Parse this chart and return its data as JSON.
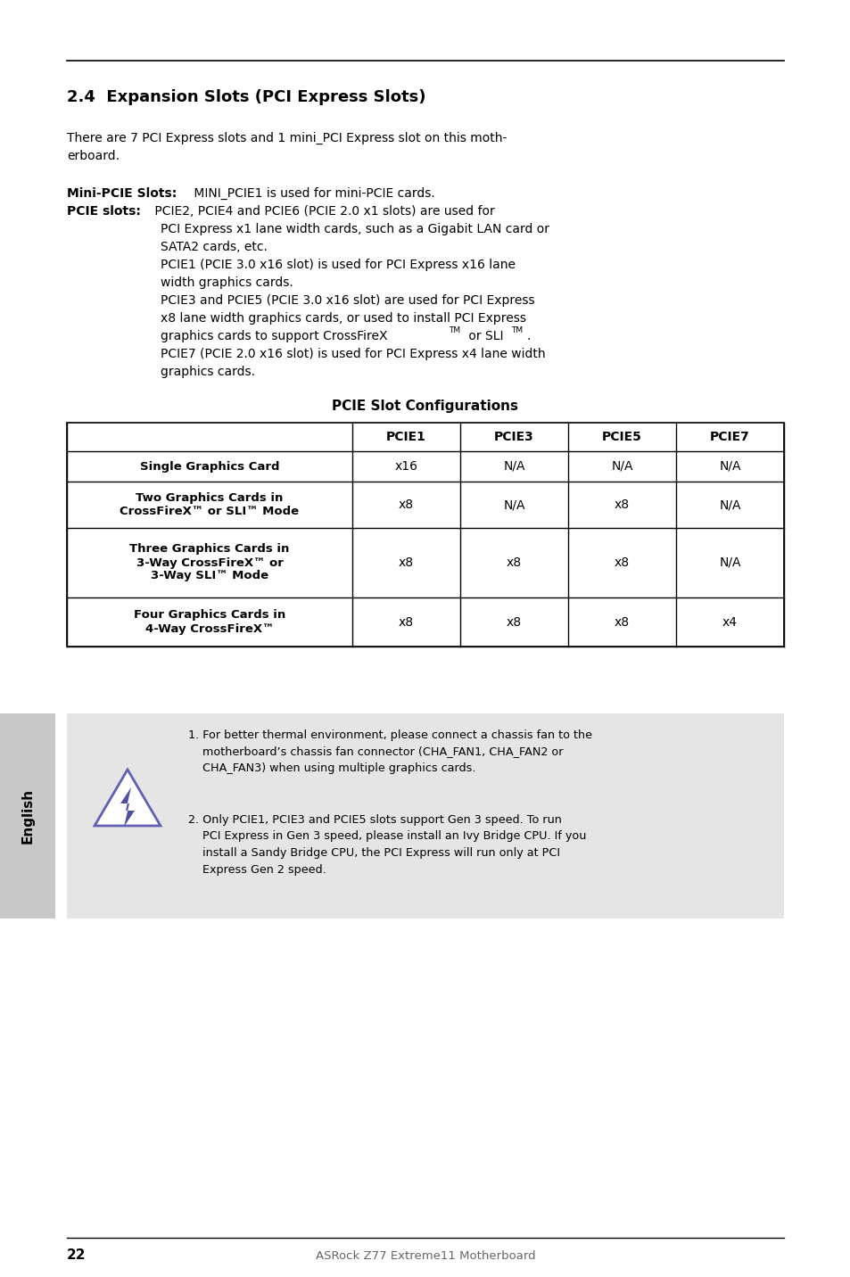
{
  "page_bg": "#ffffff",
  "section_title": "2.4  Expansion Slots (PCI Express Slots)",
  "col_headers": [
    "PCIE1",
    "PCIE3",
    "PCIE5",
    "PCIE7"
  ],
  "row_labels": [
    "Single Graphics Card",
    "Two Graphics Cards in\nCrossFireX™ or SLI™ Mode",
    "Three Graphics Cards in\n3-Way CrossFireX™ or\n3-Way SLI™ Mode",
    "Four Graphics Cards in\n4-Way CrossFireX™"
  ],
  "table_data": [
    [
      "x16",
      "N/A",
      "N/A",
      "N/A"
    ],
    [
      "x8",
      "N/A",
      "x8",
      "N/A"
    ],
    [
      "x8",
      "x8",
      "x8",
      "N/A"
    ],
    [
      "x8",
      "x8",
      "x8",
      "x4"
    ]
  ],
  "sidebar_text": "English",
  "page_num": "22",
  "footer_text": "ASRock Z77 Extreme11 Motherboard"
}
